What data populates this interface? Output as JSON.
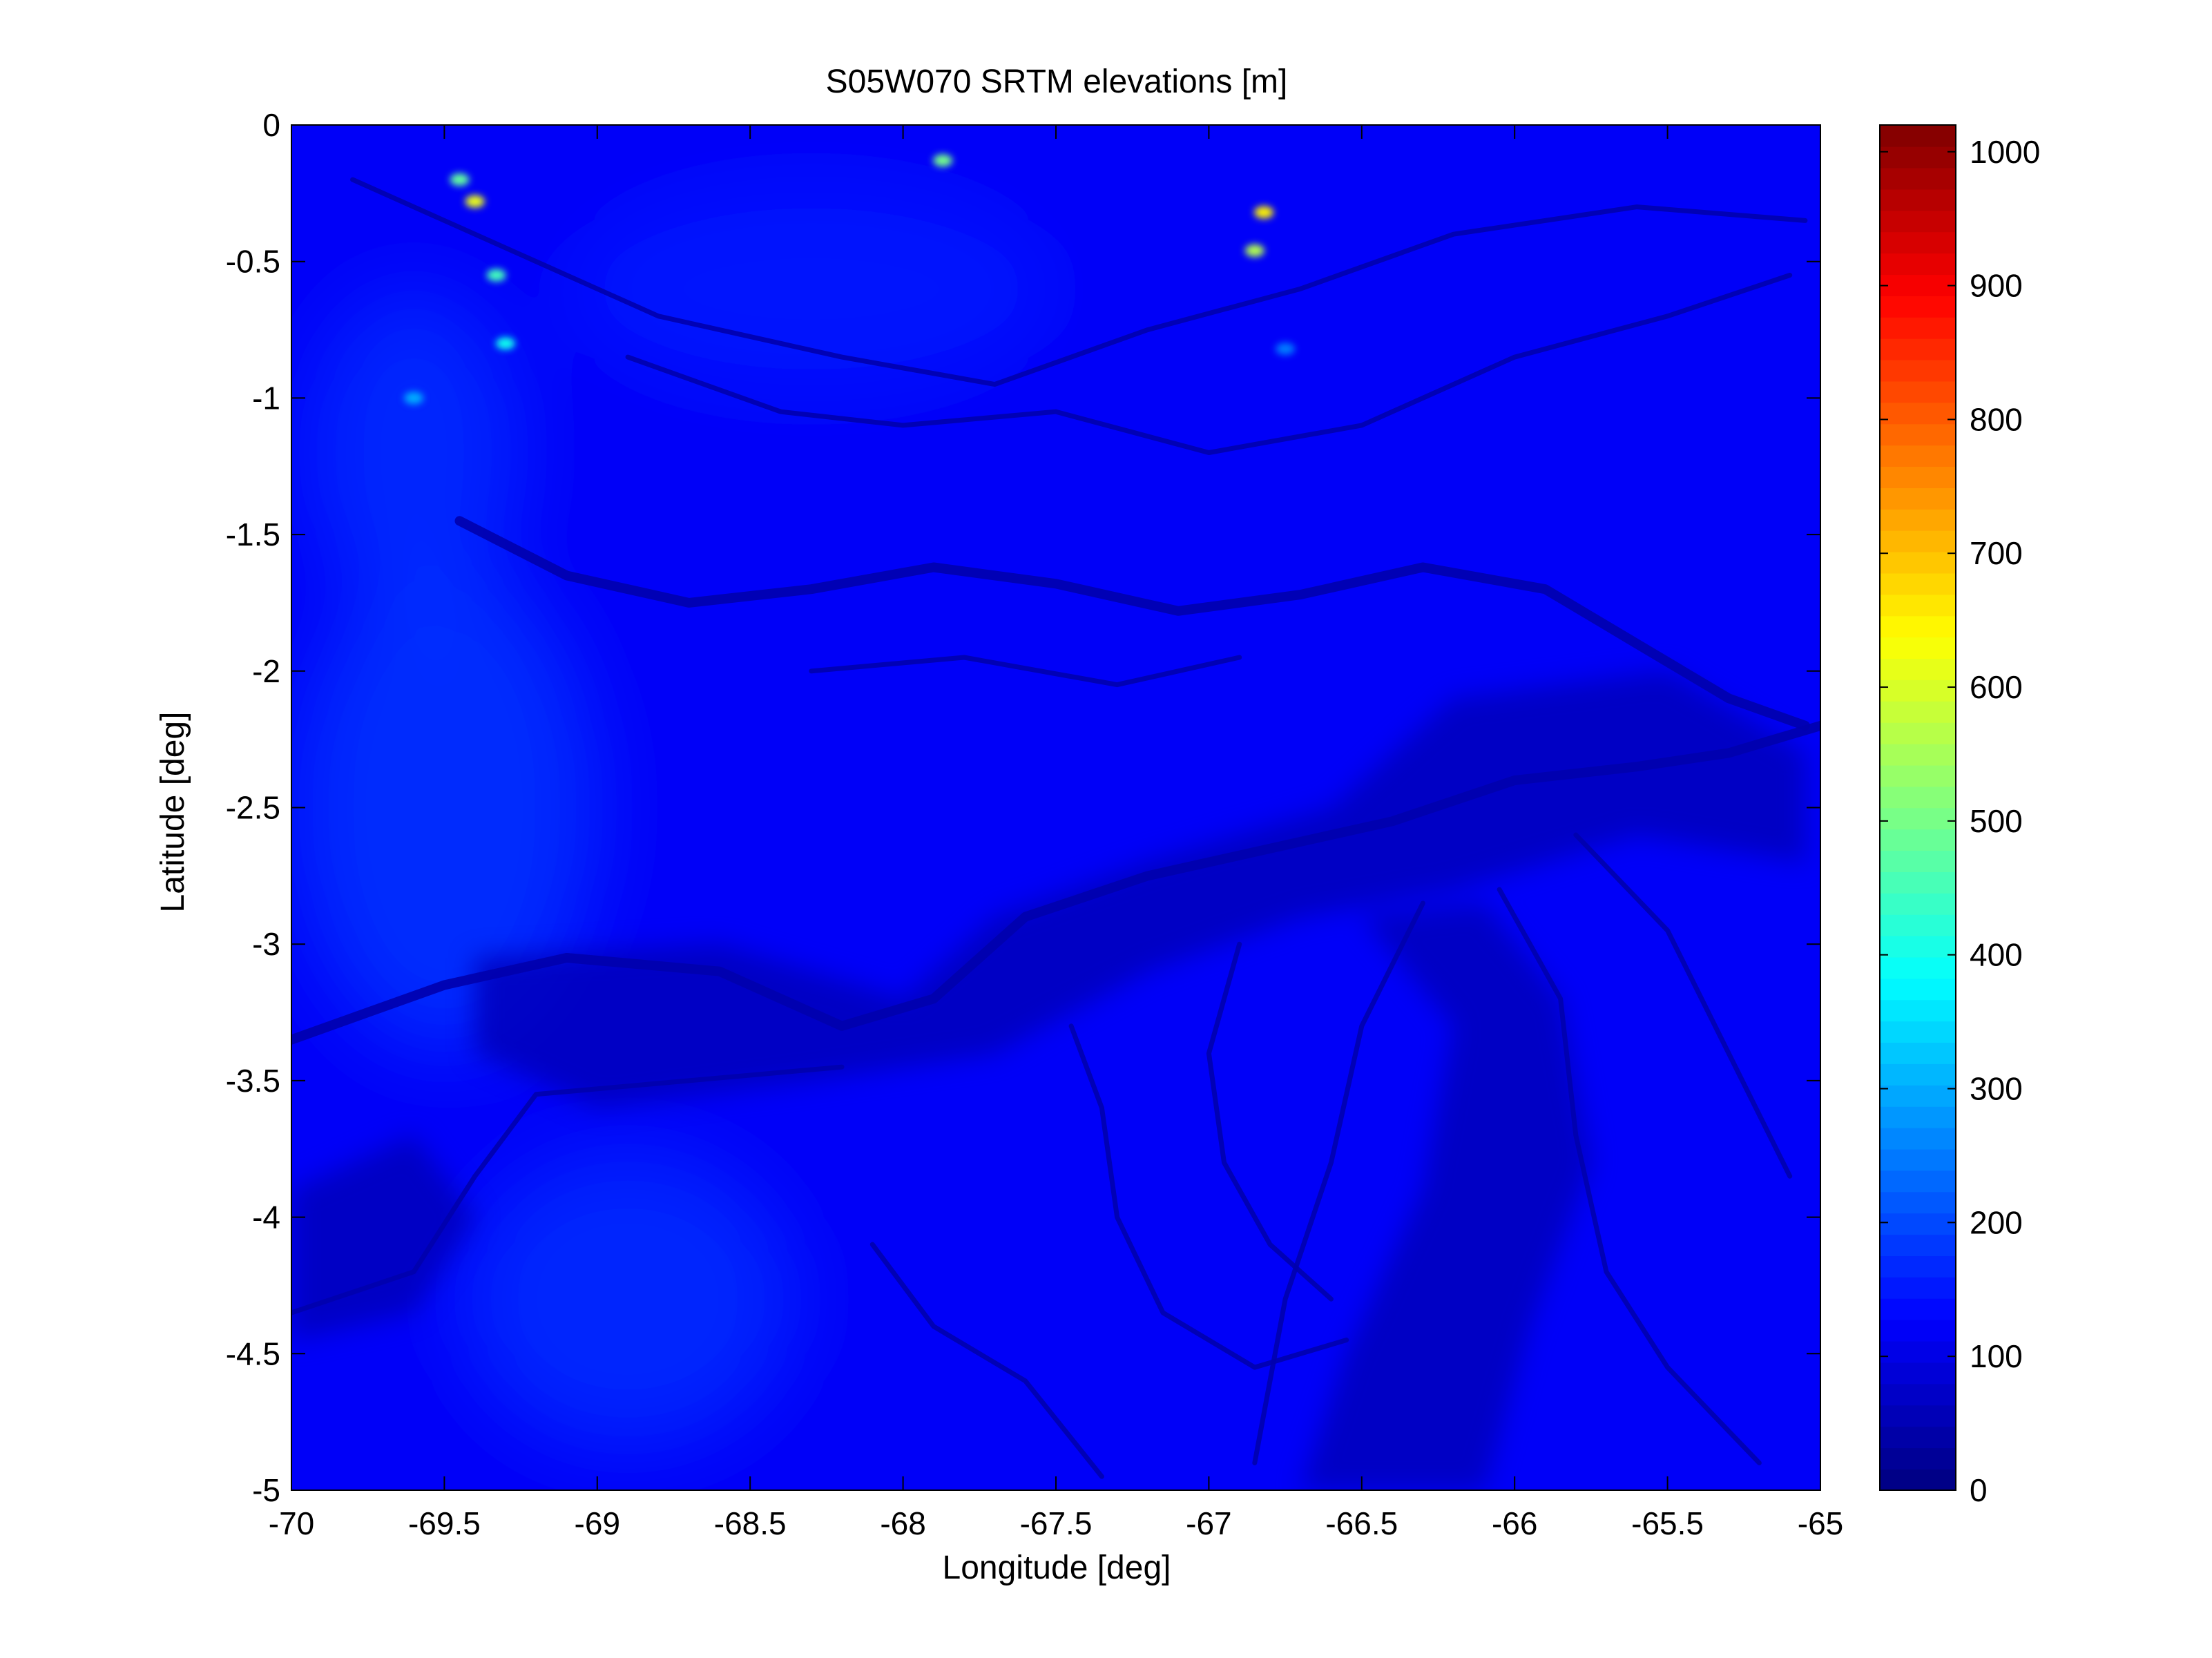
{
  "chart_data": {
    "type": "heatmap",
    "title": "S05W070 SRTM elevations [m]",
    "xlabel": "Longitude [deg]",
    "ylabel": "Latitude [deg]",
    "xlim": [
      -70,
      -65
    ],
    "ylim": [
      -5,
      0
    ],
    "x_ticks": [
      -70,
      -69.5,
      -69,
      -68.5,
      -68,
      -67.5,
      -67,
      -66.5,
      -66,
      -65.5,
      -65
    ],
    "x_tick_labels": [
      "-70",
      "-69.5",
      "-69",
      "-68.5",
      "-68",
      "-67.5",
      "-67",
      "-66.5",
      "-66",
      "-65.5",
      "-65"
    ],
    "y_ticks": [
      0,
      -0.5,
      -1,
      -1.5,
      -2,
      -2.5,
      -3,
      -3.5,
      -4,
      -4.5,
      -5
    ],
    "y_tick_labels": [
      "0",
      "-0.5",
      "-1",
      "-1.5",
      "-2",
      "-2.5",
      "-3",
      "-3.5",
      "-4",
      "-4.5",
      "-5"
    ],
    "colormap": "jet",
    "clim": [
      0,
      1020
    ],
    "colorbar_ticks": [
      0,
      100,
      200,
      300,
      400,
      500,
      600,
      700,
      800,
      900,
      1000
    ],
    "colorbar_tick_labels": [
      "0",
      "100",
      "200",
      "300",
      "400",
      "500",
      "600",
      "700",
      "800",
      "900",
      "1000"
    ],
    "background_elevation_m": 120,
    "grid": false,
    "river_paths": [
      [
        [
          -69.45,
          -1.45
        ],
        [
          -69.1,
          -1.65
        ],
        [
          -68.7,
          -1.75
        ],
        [
          -68.3,
          -1.7
        ],
        [
          -67.9,
          -1.62
        ],
        [
          -67.5,
          -1.68
        ],
        [
          -67.1,
          -1.78
        ],
        [
          -66.7,
          -1.72
        ],
        [
          -66.3,
          -1.62
        ],
        [
          -65.9,
          -1.7
        ],
        [
          -65.6,
          -1.9
        ],
        [
          -65.3,
          -2.1
        ],
        [
          -65.05,
          -2.2
        ]
      ],
      [
        [
          -70,
          -3.35
        ],
        [
          -69.5,
          -3.15
        ],
        [
          -69.1,
          -3.05
        ],
        [
          -68.6,
          -3.1
        ],
        [
          -68.2,
          -3.3
        ],
        [
          -67.9,
          -3.2
        ],
        [
          -67.6,
          -2.9
        ],
        [
          -67.2,
          -2.75
        ],
        [
          -66.8,
          -2.65
        ],
        [
          -66.4,
          -2.55
        ],
        [
          -66,
          -2.4
        ],
        [
          -65.6,
          -2.35
        ],
        [
          -65.3,
          -2.3
        ],
        [
          -65,
          -2.2
        ]
      ],
      [
        [
          -69.8,
          -0.2
        ],
        [
          -69.3,
          -0.45
        ],
        [
          -68.8,
          -0.7
        ],
        [
          -68.2,
          -0.85
        ],
        [
          -67.7,
          -0.95
        ],
        [
          -67.2,
          -0.75
        ],
        [
          -66.7,
          -0.6
        ],
        [
          -66.2,
          -0.4
        ],
        [
          -65.6,
          -0.3
        ],
        [
          -65.05,
          -0.35
        ]
      ],
      [
        [
          -68.9,
          -0.85
        ],
        [
          -68.4,
          -1.05
        ],
        [
          -68,
          -1.1
        ],
        [
          -67.5,
          -1.05
        ],
        [
          -67,
          -1.2
        ],
        [
          -66.5,
          -1.1
        ],
        [
          -66,
          -0.85
        ],
        [
          -65.5,
          -0.7
        ],
        [
          -65.1,
          -0.55
        ]
      ],
      [
        [
          -68.3,
          -2
        ],
        [
          -67.8,
          -1.95
        ],
        [
          -67.3,
          -2.05
        ],
        [
          -66.9,
          -1.95
        ]
      ],
      [
        [
          -70,
          -4.35
        ],
        [
          -69.6,
          -4.2
        ],
        [
          -69.4,
          -3.85
        ],
        [
          -69.2,
          -3.55
        ],
        [
          -68.7,
          -3.5
        ],
        [
          -68.2,
          -3.45
        ]
      ],
      [
        [
          -67.45,
          -3.3
        ],
        [
          -67.35,
          -3.6
        ],
        [
          -67.3,
          -4
        ],
        [
          -67.15,
          -4.35
        ],
        [
          -66.85,
          -4.55
        ],
        [
          -66.55,
          -4.45
        ]
      ],
      [
        [
          -66.9,
          -3
        ],
        [
          -67,
          -3.4
        ],
        [
          -66.95,
          -3.8
        ],
        [
          -66.8,
          -4.1
        ],
        [
          -66.6,
          -4.3
        ]
      ],
      [
        [
          -66.3,
          -2.85
        ],
        [
          -66.5,
          -3.3
        ],
        [
          -66.6,
          -3.8
        ],
        [
          -66.75,
          -4.3
        ],
        [
          -66.85,
          -4.9
        ]
      ],
      [
        [
          -66.05,
          -2.8
        ],
        [
          -65.85,
          -3.2
        ],
        [
          -65.8,
          -3.7
        ],
        [
          -65.7,
          -4.2
        ],
        [
          -65.5,
          -4.55
        ],
        [
          -65.2,
          -4.9
        ]
      ],
      [
        [
          -65.8,
          -2.6
        ],
        [
          -65.5,
          -2.95
        ],
        [
          -65.3,
          -3.4
        ],
        [
          -65.1,
          -3.85
        ]
      ],
      [
        [
          -68.1,
          -4.1
        ],
        [
          -67.9,
          -4.4
        ],
        [
          -67.6,
          -4.6
        ],
        [
          -67.35,
          -4.95
        ]
      ]
    ],
    "low_regions": [
      [
        [
          -69.4,
          -3.05
        ],
        [
          -68.6,
          -3.0
        ],
        [
          -68.0,
          -3.2
        ],
        [
          -67.7,
          -2.9
        ],
        [
          -67.2,
          -2.7
        ],
        [
          -66.6,
          -2.5
        ],
        [
          -66.2,
          -2.1
        ],
        [
          -65.5,
          -2.0
        ],
        [
          -65.05,
          -2.3
        ],
        [
          -65.05,
          -2.7
        ],
        [
          -65.6,
          -2.6
        ],
        [
          -66.2,
          -2.8
        ],
        [
          -66.7,
          -2.9
        ],
        [
          -67.2,
          -3.1
        ],
        [
          -67.7,
          -3.4
        ],
        [
          -68.3,
          -3.5
        ],
        [
          -69.0,
          -3.6
        ],
        [
          -69.4,
          -3.4
        ]
      ],
      [
        [
          -70,
          -3.9
        ],
        [
          -69.6,
          -3.7
        ],
        [
          -69.4,
          -4.0
        ],
        [
          -69.6,
          -4.35
        ],
        [
          -70,
          -4.45
        ]
      ],
      [
        [
          -66.5,
          -2.9
        ],
        [
          -66.2,
          -3.3
        ],
        [
          -66.3,
          -3.9
        ],
        [
          -66.55,
          -4.5
        ],
        [
          -66.7,
          -5.0
        ],
        [
          -66.1,
          -5.0
        ],
        [
          -65.95,
          -4.4
        ],
        [
          -65.75,
          -3.8
        ],
        [
          -65.85,
          -3.2
        ],
        [
          -66.1,
          -2.85
        ]
      ]
    ],
    "high_regions": [
      {
        "center": [
          -69.5,
          -2.5
        ],
        "radii": [
          0.5,
          0.9
        ],
        "elevation_m": 185
      },
      {
        "center": [
          -68.9,
          -4.3
        ],
        "radii": [
          0.55,
          0.55
        ],
        "elevation_m": 175
      },
      {
        "center": [
          -69.6,
          -1.2
        ],
        "radii": [
          0.35,
          0.6
        ],
        "elevation_m": 175
      },
      {
        "center": [
          -68.3,
          -0.6
        ],
        "radii": [
          0.8,
          0.4
        ],
        "elevation_m": 150
      }
    ],
    "peaks": [
      {
        "lon": -69.45,
        "lat": -0.2,
        "elevation_m": 480
      },
      {
        "lon": -69.4,
        "lat": -0.28,
        "elevation_m": 620
      },
      {
        "lon": -69.33,
        "lat": -0.55,
        "elevation_m": 450
      },
      {
        "lon": -69.3,
        "lat": -0.8,
        "elevation_m": 400
      },
      {
        "lon": -67.87,
        "lat": -0.13,
        "elevation_m": 500
      },
      {
        "lon": -66.82,
        "lat": -0.32,
        "elevation_m": 650
      },
      {
        "lon": -66.85,
        "lat": -0.46,
        "elevation_m": 560
      },
      {
        "lon": -66.75,
        "lat": -0.82,
        "elevation_m": 250
      },
      {
        "lon": -69.6,
        "lat": -1.0,
        "elevation_m": 300
      }
    ]
  }
}
